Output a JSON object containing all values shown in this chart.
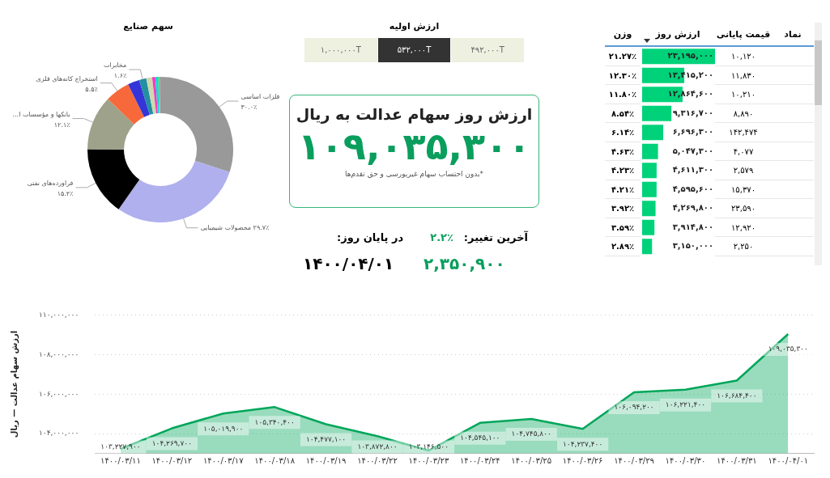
{
  "chart_data": [
    {
      "type": "donut",
      "title": "سهم صنایع",
      "categories": [
        "فلزات اساسی",
        "محصولات شیمیایی",
        "فراورده‌های نفتی",
        "بانکها و مؤسسات ا...",
        "استخراج کانه‌های فلزی",
        null,
        "مخابرات",
        null,
        null,
        null,
        null,
        null
      ],
      "values": [
        30.0,
        29.7,
        15.4,
        12.1,
        5.5,
        2.6,
        1.6,
        1.3,
        0.7,
        0.6,
        0.3,
        0.2
      ],
      "value_labels": [
        "۳۰.۰٪",
        "۲۹.۷٪",
        "۱۵.۴٪",
        "۱۲.۱٪",
        "۵.۵٪",
        null,
        "۱.۶٪",
        null,
        null,
        null,
        null,
        null
      ],
      "colors": [
        "#999999",
        "#b0b0ee",
        "#000000",
        "#9fa28a",
        "#f7693a",
        "#3434d8",
        "#238fa3",
        "#cfd8b0",
        "#f23cc0",
        "#13d6e0",
        "#3fd17a",
        "#b0b0b0"
      ]
    },
    {
      "type": "other",
      "title": "ارزش اولیه",
      "annotations": [
        "۱,۰۰۰,۰۰۰T",
        "۵۳۲,۰۰۰T",
        "۴۹۲,۰۰۰T"
      ]
    },
    {
      "type": "other",
      "title": "ارزش روز سهام عدالت به ریال",
      "subtitle": "۱۰۹,۰۳۵,۳۰۰",
      "annotations": [
        "*بدون احتساب سهام غیربورسی و حق تقدم‌ها"
      ]
    },
    {
      "type": "other",
      "annotations": [
        "آخرین تغییر:",
        "۲.۲٪",
        "در پایان روز:",
        "۲,۳۵۰,۹۰۰",
        "۱۴۰۰/۰۴/۰۱"
      ]
    },
    {
      "type": "bar",
      "orientation": "horizontal",
      "title": "ارزش روز",
      "annotations": [
        "نماد"
      ],
      "categories": [
        null,
        null,
        null,
        null,
        null,
        null,
        null,
        null,
        null,
        null,
        null
      ],
      "series": [
        {
          "color": "#00d27a",
          "values": [
            23195000,
            13415200,
            12864600,
            9316700,
            6696300,
            5047300,
            4611300,
            4595600,
            4269800,
            3914800,
            3150000
          ],
          "value_labels": [
            "۲۳,۱۹۵,۰۰۰",
            "۱۳,۴۱۵,۲۰۰",
            "۱۲,۸۶۴,۶۰۰",
            "۹,۳۱۶,۷۰۰",
            "۶,۶۹۶,۳۰۰",
            "۵,۰۴۷,۳۰۰",
            "۴,۶۱۱,۳۰۰",
            "۴,۵۹۵,۶۰۰",
            "۴,۲۶۹,۸۰۰",
            "۳,۹۱۴,۸۰۰",
            "۳,۱۵۰,۰۰۰"
          ]
        }
      ]
    },
    {
      "type": "other",
      "title": "قیمت پایانی",
      "annotations": [
        "۱۰,۱۲۰",
        "۱۱,۸۳۰",
        "۱۰,۲۱۰",
        "۸,۸۹۰",
        "۱۴۲,۴۷۴",
        "۴,۰۷۷",
        "۲,۵۷۹",
        "۱۵,۳۷۰",
        "۲۳,۵۹۰",
        "۱۲,۹۲۰",
        "۲,۲۵۰"
      ]
    },
    {
      "type": "other",
      "title": "وزن",
      "annotations": [
        "۲۱.۲۷٪",
        "۱۲.۳۰٪",
        "۱۱.۸۰٪",
        "۸.۵۴٪",
        "۶.۱۴٪",
        "۴.۶۳٪",
        "۴.۲۳٪",
        "۴.۲۱٪",
        "۳.۹۲٪",
        "۳.۵۹٪",
        "۲.۸۹٪"
      ]
    },
    {
      "type": "area",
      "ylabel": "ارزش سهام عدالت — ریال",
      "categories": [
        "۱۴۰۰/۰۳/۱۱",
        "۱۴۰۰/۰۳/۱۲",
        "۱۴۰۰/۰۳/۱۷",
        "۱۴۰۰/۰۳/۱۸",
        "۱۴۰۰/۰۳/۱۹",
        "۱۴۰۰/۰۳/۲۲",
        "۱۴۰۰/۰۳/۲۳",
        "۱۴۰۰/۰۳/۲۴",
        "۱۴۰۰/۰۳/۲۵",
        "۱۴۰۰/۰۳/۲۶",
        "۱۴۰۰/۰۳/۲۹",
        "۱۴۰۰/۰۳/۳۰",
        "۱۴۰۰/۰۳/۳۱",
        "۱۴۰۰/۰۴/۰۱"
      ],
      "series": [
        {
          "color": "#00a65a",
          "values": [
            103227900,
            104269700,
            105019900,
            105340400,
            104477100,
            103872800,
            103146500,
            104545100,
            104745800,
            104237400,
            106094200,
            106221400,
            106684400,
            109035300
          ],
          "value_labels": [
            "۱۰۳,۲۲۷,۹۰۰",
            "۱۰۴,۲۶۹,۷۰۰",
            "۱۰۵,۰۱۹,۹۰۰",
            "۱۰۵,۳۴۰,۴۰۰",
            "۱۰۴,۴۷۷,۱۰۰",
            "۱۰۳,۸۷۲,۸۰۰",
            "۱۰۳,۱۴۶,۵۰۰",
            "۱۰۴,۵۴۵,۱۰۰",
            "۱۰۴,۷۴۵,۸۰۰",
            "۱۰۴,۲۳۷,۴۰۰",
            "۱۰۶,۰۹۴,۲۰۰",
            "۱۰۶,۲۲۱,۴۰۰",
            "۱۰۶,۶۸۴,۴۰۰",
            "۱۰۹,۰۳۵,۳۰۰"
          ]
        }
      ],
      "ylim": [
        103000000,
        110000000
      ],
      "yticks": [
        {
          "value": 104000000,
          "label": "۱۰۴,۰۰۰,۰۰۰"
        },
        {
          "value": 106000000,
          "label": "۱۰۶,۰۰۰,۰۰۰"
        },
        {
          "value": 108000000,
          "label": "۱۰۸,۰۰۰,۰۰۰"
        },
        {
          "value": 110000000,
          "label": "۱۱۰,۰۰۰,۰۰۰"
        }
      ],
      "grid": "y"
    }
  ]
}
